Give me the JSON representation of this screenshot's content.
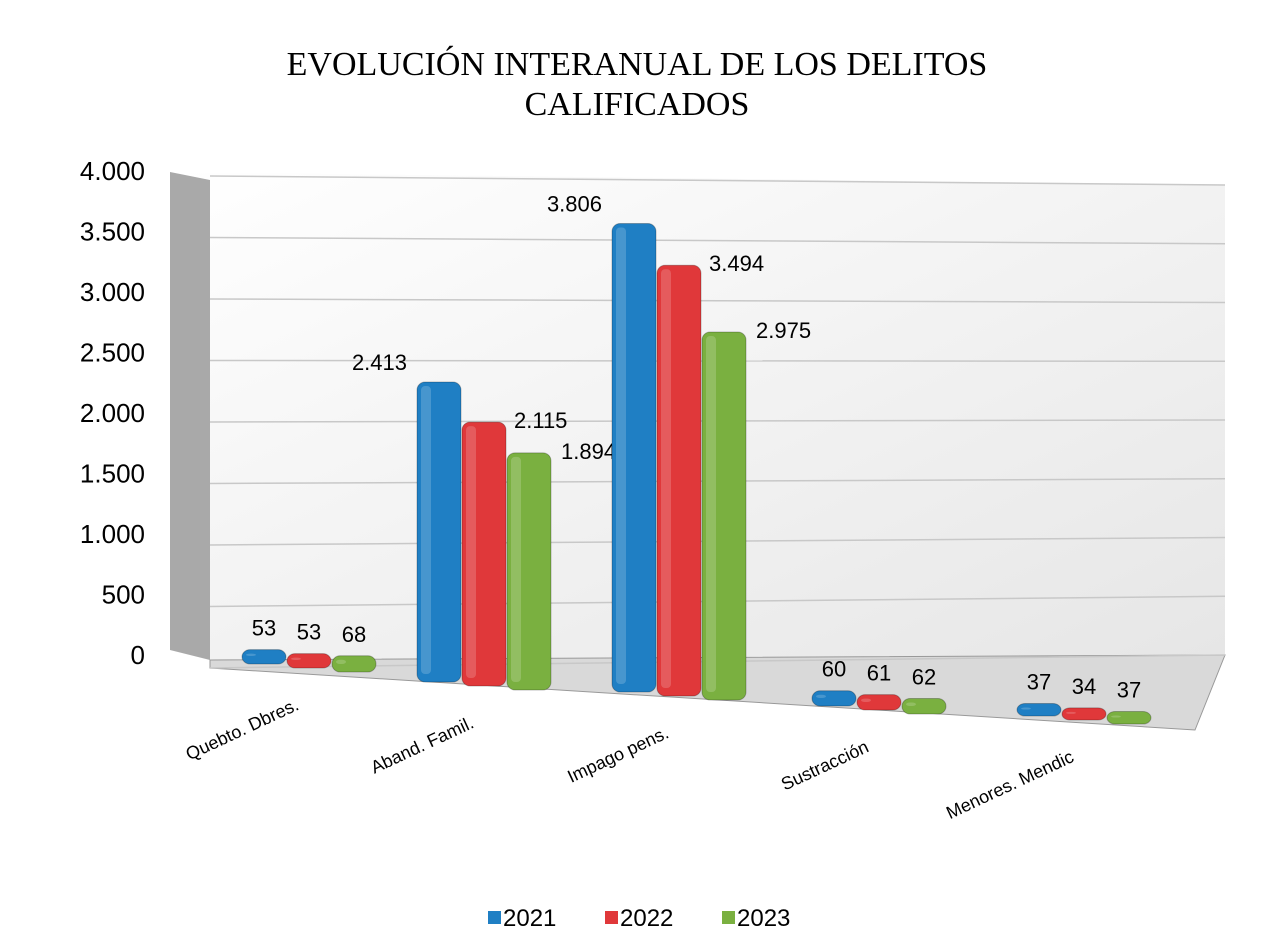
{
  "chart_data": {
    "type": "bar3d",
    "title": "EVOLUCIÓN INTERANUAL DE LOS DELITOS CALIFICADOS",
    "categories": [
      "Quebto. Dbres.",
      "Aband. Famil.",
      "Impago pens.",
      "Sustracción",
      "Menores. Mendic"
    ],
    "series": [
      {
        "name": "2021",
        "color": "#1f7fc4",
        "values": [
          53,
          2413,
          3806,
          60,
          37
        ],
        "value_labels": [
          "53",
          "2.413",
          "3.806",
          "60",
          "37"
        ]
      },
      {
        "name": "2022",
        "color": "#e0383a",
        "values": [
          53,
          2115,
          3494,
          61,
          34
        ],
        "value_labels": [
          "53",
          "2.115",
          "3.494",
          "61",
          "34"
        ]
      },
      {
        "name": "2023",
        "color": "#7ab040",
        "values": [
          68,
          1894,
          2975,
          62,
          37
        ],
        "value_labels": [
          "68",
          "1.894",
          "2.975",
          "62",
          "37"
        ]
      }
    ],
    "ylim": [
      0,
      4000
    ],
    "yticks": [
      0,
      500,
      {
        "value": 1000,
        "label": "1.000"
      },
      {
        "value": 1500,
        "label": "1.500"
      },
      {
        "value": 2000,
        "label": "2.000"
      },
      {
        "value": 2500,
        "label": "2.500"
      },
      {
        "value": 3000,
        "label": "3.000"
      },
      {
        "value": 3500,
        "label": "3.500"
      },
      {
        "value": 4000,
        "label": "4.000"
      }
    ],
    "grid": true,
    "legend": "bottom"
  }
}
